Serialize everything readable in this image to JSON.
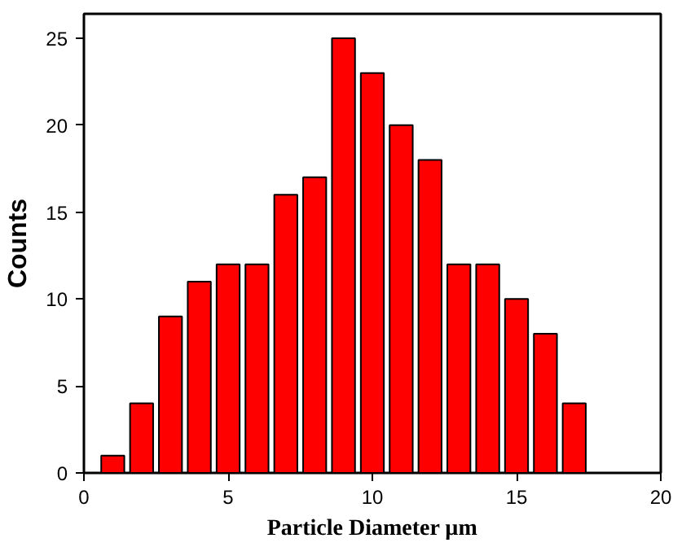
{
  "chart_data": {
    "type": "bar",
    "xlabel": "Particle Diameter µm",
    "ylabel": "Counts",
    "x": [
      1,
      2,
      3,
      4,
      5,
      6,
      7,
      8,
      9,
      10,
      11,
      12,
      13,
      14,
      15,
      16,
      17
    ],
    "values": [
      1,
      4,
      9,
      11,
      12,
      12,
      16,
      17,
      25,
      23,
      20,
      18,
      12,
      12,
      10,
      8,
      4
    ],
    "color": "#ff0000",
    "xlim": [
      0,
      20
    ],
    "xticks": [
      0,
      5,
      10,
      15,
      20
    ],
    "ylim": [
      0,
      26.4
    ],
    "yticks": [
      0,
      5,
      10,
      15,
      20,
      25
    ],
    "grid": false
  }
}
